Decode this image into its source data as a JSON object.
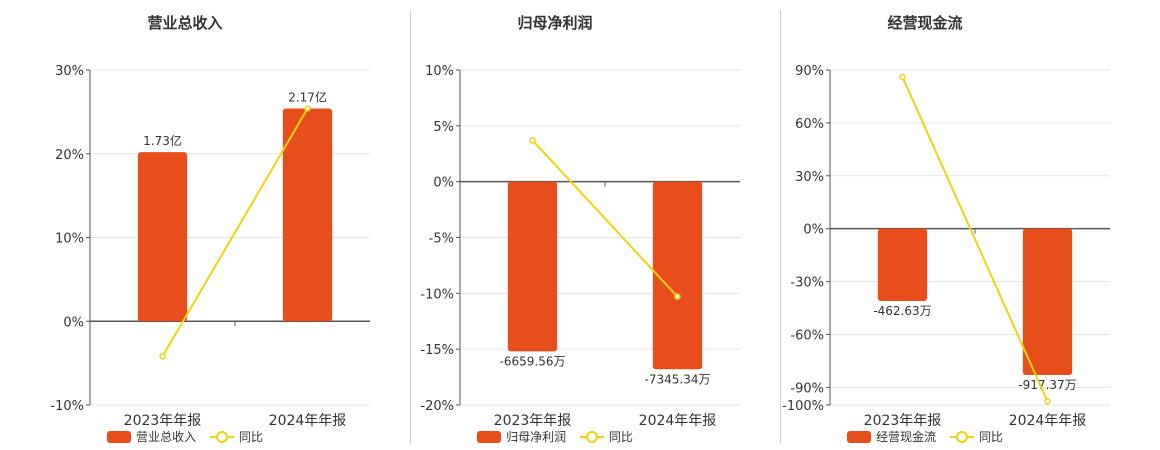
{
  "colors": {
    "bar": "#e84d1c",
    "line": "#f2d211",
    "axis": "#555555",
    "grid": "#e6e6e6",
    "text": "#333333"
  },
  "chart_data": [
    {
      "type": "bar",
      "title": "营业总收入",
      "categories": [
        "2023年年报",
        "2024年年报"
      ],
      "ylim": [
        -10,
        30
      ],
      "yticks": [
        -10,
        0,
        10,
        20,
        30
      ],
      "ytick_labels": [
        "-10%",
        "0%",
        "10%",
        "20%",
        "30%"
      ],
      "bar_name": "营业总收入",
      "line_name": "同比",
      "bar_values": [
        20.2,
        25.4
      ],
      "bar_labels": [
        "1.73亿",
        "2.17亿"
      ],
      "line_values": [
        -4.2,
        25.4
      ],
      "grid": true,
      "legend": "bottom"
    },
    {
      "type": "bar",
      "title": "归母净利润",
      "categories": [
        "2023年年报",
        "2024年年报"
      ],
      "ylim": [
        -20,
        10
      ],
      "yticks": [
        -20,
        -15,
        -10,
        -5,
        0,
        5,
        10
      ],
      "ytick_labels": [
        "-20%",
        "-15%",
        "-10%",
        "-5%",
        "0%",
        "5%",
        "10%"
      ],
      "bar_name": "归母净利润",
      "line_name": "同比",
      "bar_values": [
        -15.2,
        -16.8
      ],
      "bar_labels": [
        "-6659.56万",
        "-7345.34万"
      ],
      "line_values": [
        3.7,
        -10.3
      ],
      "grid": true,
      "legend": "bottom"
    },
    {
      "type": "bar",
      "title": "经营现金流",
      "categories": [
        "2023年年报",
        "2024年年报"
      ],
      "ylim": [
        -100,
        90
      ],
      "yticks": [
        -100,
        -90,
        -60,
        -30,
        0,
        30,
        60,
        90
      ],
      "ytick_labels": [
        "-100%",
        "-90%",
        "-60%",
        "-30%",
        "0%",
        "30%",
        "60%",
        "90%"
      ],
      "bar_name": "经营现金流",
      "line_name": "同比",
      "bar_values": [
        -41,
        -83
      ],
      "bar_labels": [
        "-462.63万",
        "-917.37万"
      ],
      "line_values": [
        86,
        -98
      ],
      "grid": true,
      "legend": "bottom"
    }
  ]
}
